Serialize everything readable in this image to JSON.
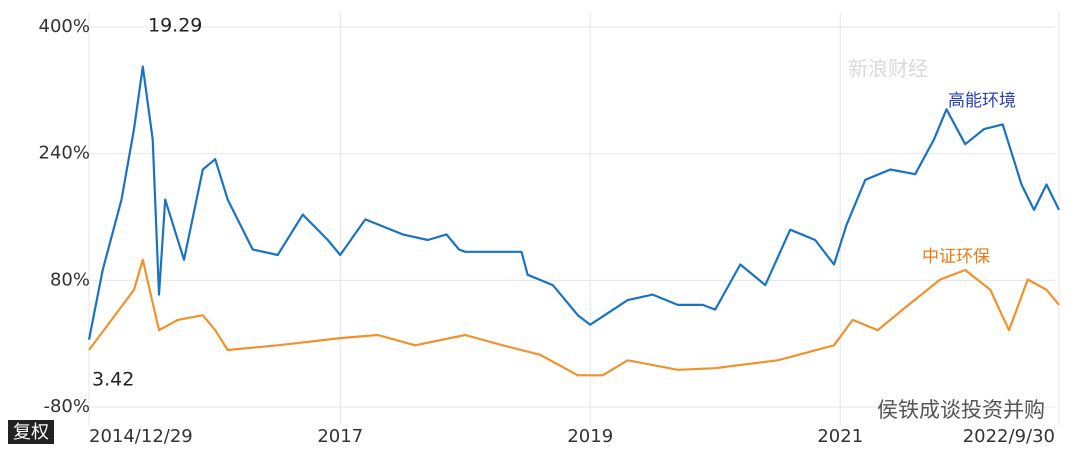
{
  "chart_data": {
    "type": "line",
    "annotations": {
      "max": "19.29",
      "min": "3.42"
    },
    "adjust_label": "复权",
    "watermark": "新浪财经",
    "footer_watermark": "侯铁成谈投资并购",
    "xlim": [
      2014.99,
      2022.75
    ],
    "xticks": [
      {
        "value": 2014.99,
        "label": "2014/12/29"
      },
      {
        "value": 2017,
        "label": "2017"
      },
      {
        "value": 2019,
        "label": "2019"
      },
      {
        "value": 2021,
        "label": "2021"
      },
      {
        "value": 2022.75,
        "label": "2022/9/30"
      }
    ],
    "ylim": [
      -80,
      400
    ],
    "yticks": [
      {
        "value": 400,
        "label": "400%"
      },
      {
        "value": 240,
        "label": "240%"
      },
      {
        "value": 80,
        "label": "80%"
      },
      {
        "value": -80,
        "label": "-80%"
      }
    ],
    "grid": true,
    "series": [
      {
        "name": "高能环境",
        "color": "#1a73c2",
        "x": [
          2014.99,
          2015.1,
          2015.25,
          2015.35,
          2015.42,
          2015.5,
          2015.55,
          2015.6,
          2015.75,
          2015.9,
          2016.0,
          2016.1,
          2016.3,
          2016.5,
          2016.7,
          2016.9,
          2017.0,
          2017.2,
          2017.5,
          2017.7,
          2017.85,
          2017.95,
          2018.0,
          2018.45,
          2018.5,
          2018.7,
          2018.9,
          2019.0,
          2019.3,
          2019.5,
          2019.7,
          2019.9,
          2020.0,
          2020.2,
          2020.4,
          2020.6,
          2020.8,
          2020.95,
          2021.05,
          2021.2,
          2021.4,
          2021.6,
          2021.75,
          2021.85,
          2022.0,
          2022.15,
          2022.3,
          2022.45,
          2022.55,
          2022.65,
          2022.75
        ],
        "values": [
          5,
          93,
          182,
          271,
          350,
          258,
          62,
          182,
          106,
          220,
          233,
          182,
          119,
          112,
          163,
          131,
          112,
          157,
          138,
          131,
          138,
          119,
          116,
          116,
          87,
          74,
          36,
          24,
          55,
          62,
          49,
          49,
          43,
          100,
          74,
          144,
          131,
          100,
          150,
          207,
          220,
          214,
          258,
          296,
          252,
          271,
          277,
          201,
          169,
          201,
          169
        ]
      },
      {
        "name": "中证环保",
        "color": "#f0922b",
        "x": [
          2014.99,
          2015.35,
          2015.42,
          2015.55,
          2015.7,
          2015.9,
          2016.0,
          2016.1,
          2016.5,
          2017.0,
          2017.3,
          2017.6,
          2018.0,
          2018.3,
          2018.6,
          2018.9,
          2019.1,
          2019.3,
          2019.7,
          2020.0,
          2020.5,
          2020.95,
          2021.1,
          2021.3,
          2021.5,
          2021.8,
          2022.0,
          2022.2,
          2022.35,
          2022.5,
          2022.65,
          2022.75
        ],
        "values": [
          -8,
          68,
          106,
          17,
          30,
          36,
          17,
          -8,
          -2,
          7,
          11,
          -2,
          11,
          -2,
          -14,
          -40,
          -40,
          -21,
          -33,
          -31,
          -21,
          -2,
          30,
          17,
          43,
          81,
          93,
          68,
          17,
          81,
          68,
          49
        ]
      }
    ]
  }
}
